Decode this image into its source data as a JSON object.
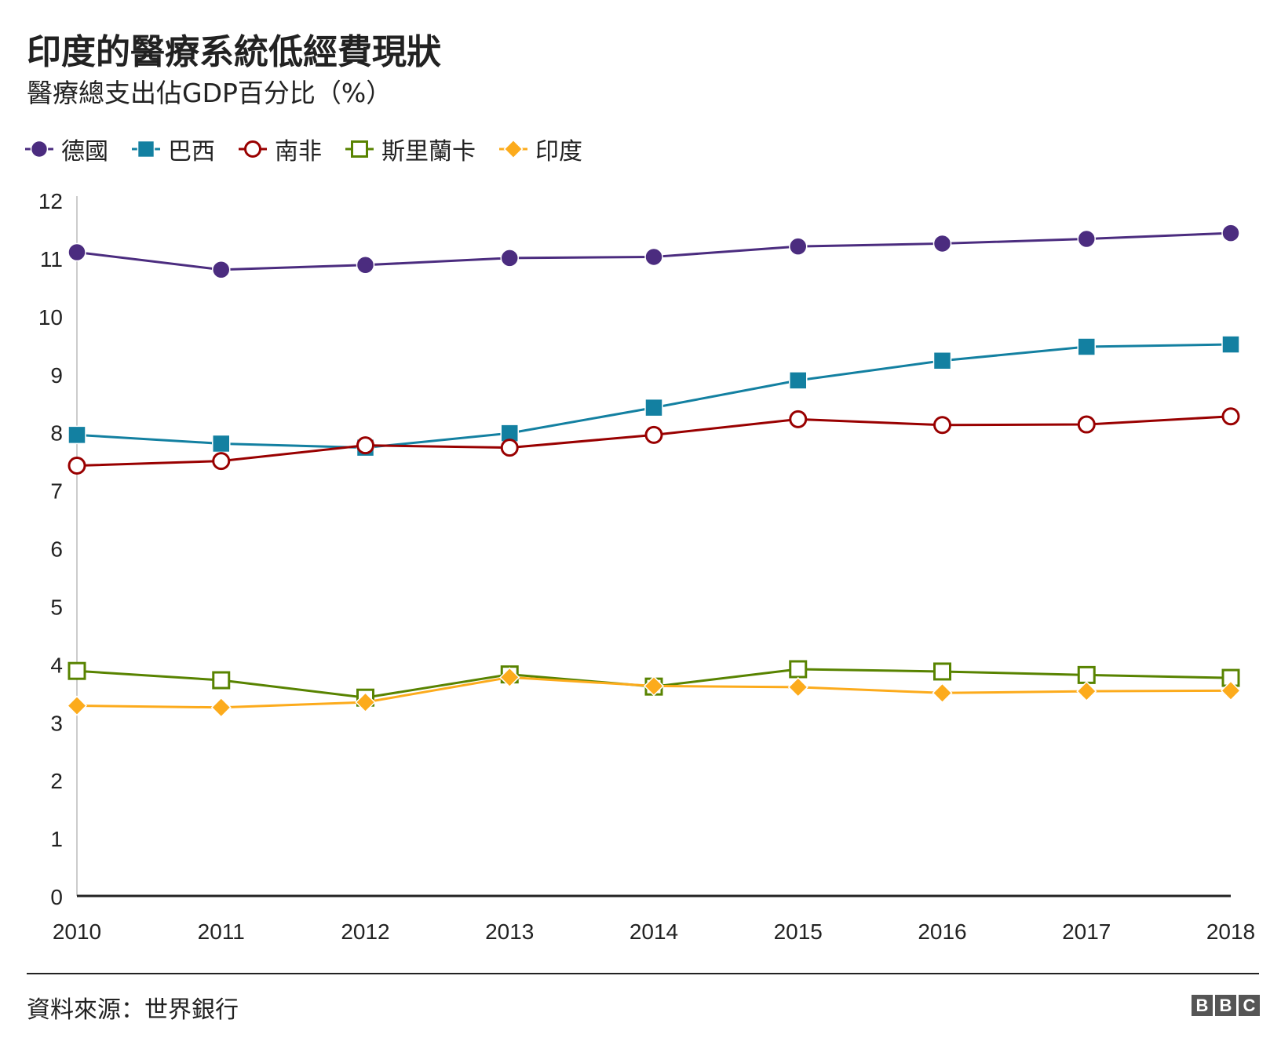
{
  "header": {
    "title": "印度的醫療系統低經費現狀",
    "subtitle": "醫療總支出佔GDP百分比（%）"
  },
  "footer": {
    "source": "資料來源：世界銀行",
    "logo_letters": [
      "B",
      "B",
      "C"
    ]
  },
  "chart_data": {
    "type": "line",
    "title": "印度的醫療系統低經費現狀",
    "subtitle": "醫療總支出佔GDP百分比（%）",
    "xlabel": "",
    "ylabel": "",
    "x": [
      "2010",
      "2011",
      "2012",
      "2013",
      "2014",
      "2015",
      "2016",
      "2017",
      "2018"
    ],
    "ylim": [
      0,
      12
    ],
    "yticks": [
      0,
      1,
      2,
      3,
      4,
      5,
      6,
      7,
      8,
      9,
      10,
      11,
      12
    ],
    "grid": false,
    "legend_position": "top-left",
    "series": [
      {
        "name": "德國",
        "color": "#4b2c7f",
        "marker": "circle-filled",
        "values": [
          11.1,
          10.8,
          10.88,
          11.0,
          11.02,
          11.2,
          11.25,
          11.33,
          11.43
        ]
      },
      {
        "name": "巴西",
        "color": "#1380a1",
        "marker": "square-filled",
        "values": [
          7.95,
          7.8,
          7.73,
          7.98,
          8.42,
          8.89,
          9.23,
          9.47,
          9.51
        ]
      },
      {
        "name": "南非",
        "color": "#990000",
        "marker": "circle-open",
        "values": [
          7.42,
          7.5,
          7.77,
          7.73,
          7.95,
          8.22,
          8.12,
          8.13,
          8.27
        ]
      },
      {
        "name": "斯里蘭卡",
        "color": "#588300",
        "marker": "square-open",
        "values": [
          3.88,
          3.72,
          3.42,
          3.82,
          3.61,
          3.91,
          3.87,
          3.81,
          3.76
        ]
      },
      {
        "name": "印度",
        "color": "#fcab1c",
        "marker": "diamond-filled",
        "values": [
          3.28,
          3.25,
          3.34,
          3.77,
          3.62,
          3.6,
          3.5,
          3.53,
          3.54
        ]
      }
    ]
  }
}
